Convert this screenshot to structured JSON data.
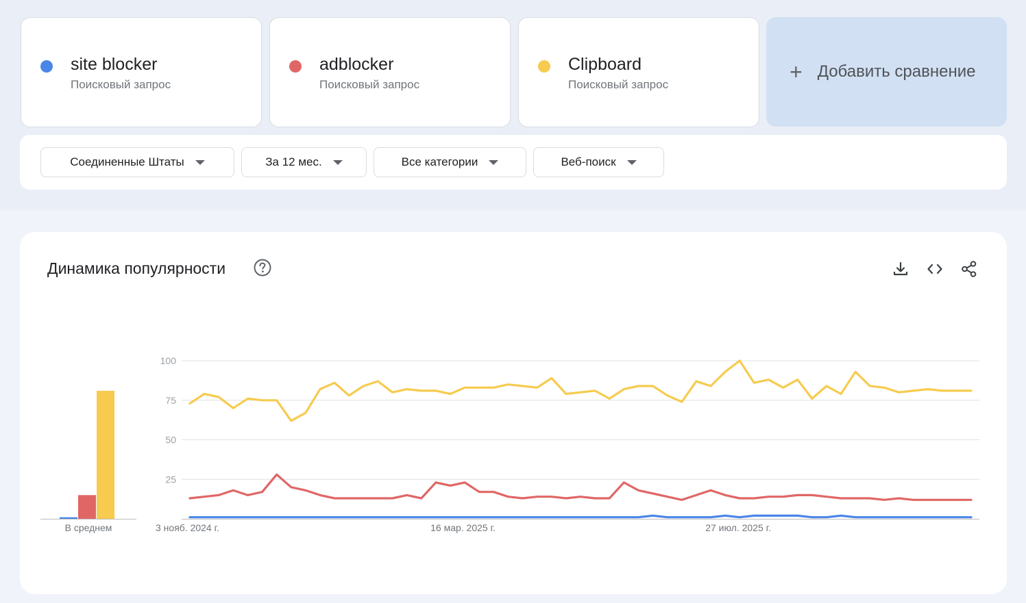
{
  "terms": [
    {
      "name": "site blocker",
      "type": "Поисковый запрос",
      "color": "#4a86e8"
    },
    {
      "name": "adblocker",
      "type": "Поисковый запрос",
      "color": "#e06666"
    },
    {
      "name": "Clipboard",
      "type": "Поисковый запрос",
      "color": "#f6cb4f"
    }
  ],
  "add_compare": {
    "label": "Добавить сравнение",
    "icon": "plus-icon"
  },
  "filters": {
    "region": "Соединенные Штаты",
    "period": "За 12 мес.",
    "category": "Все категории",
    "search_type": "Веб-поиск"
  },
  "panel": {
    "title": "Динамика популярности",
    "icons": [
      "help-icon",
      "download-icon",
      "embed-icon",
      "share-icon"
    ]
  },
  "chart_data": {
    "type": "line",
    "yticks": [
      100,
      75,
      50,
      25
    ],
    "ylim": [
      0,
      100
    ],
    "x_tick_labels": [
      "3 нояб. 2024 г.",
      "16 мар. 2025 г.",
      "27 июл. 2025 г."
    ],
    "x_tick_indices": [
      0,
      19,
      38
    ],
    "average_label": "В среднем",
    "averages": [
      1,
      15,
      81
    ],
    "grid": true,
    "series": [
      {
        "name": "site blocker",
        "color": "#4a86e8",
        "values": [
          1,
          1,
          1,
          1,
          1,
          1,
          1,
          1,
          1,
          1,
          1,
          1,
          1,
          1,
          1,
          1,
          1,
          1,
          1,
          1,
          1,
          1,
          1,
          1,
          1,
          1,
          1,
          1,
          1,
          1,
          1,
          1,
          2,
          1,
          1,
          1,
          1,
          2,
          1,
          2,
          2,
          2,
          2,
          1,
          1,
          2,
          1,
          1,
          1,
          1,
          1,
          1,
          1,
          1,
          1
        ]
      },
      {
        "name": "adblocker",
        "color": "#e06666",
        "values": [
          13,
          14,
          15,
          18,
          15,
          17,
          28,
          20,
          18,
          15,
          13,
          13,
          13,
          13,
          13,
          15,
          13,
          23,
          21,
          23,
          17,
          17,
          14,
          13,
          14,
          14,
          13,
          14,
          13,
          13,
          23,
          18,
          16,
          14,
          12,
          15,
          18,
          15,
          13,
          13,
          14,
          14,
          15,
          15,
          14,
          13,
          13,
          13,
          12,
          13,
          12,
          12,
          12,
          12,
          12
        ]
      },
      {
        "name": "Clipboard",
        "color": "#f6cb4f",
        "values": [
          73,
          79,
          77,
          70,
          76,
          75,
          75,
          62,
          67,
          82,
          86,
          78,
          84,
          87,
          80,
          82,
          81,
          81,
          79,
          83,
          83,
          83,
          85,
          84,
          83,
          89,
          79,
          80,
          81,
          76,
          82,
          84,
          84,
          78,
          74,
          87,
          84,
          93,
          100,
          86,
          88,
          83,
          88,
          76,
          84,
          79,
          93,
          84,
          83,
          80,
          81,
          82,
          81,
          81,
          81
        ]
      }
    ]
  }
}
